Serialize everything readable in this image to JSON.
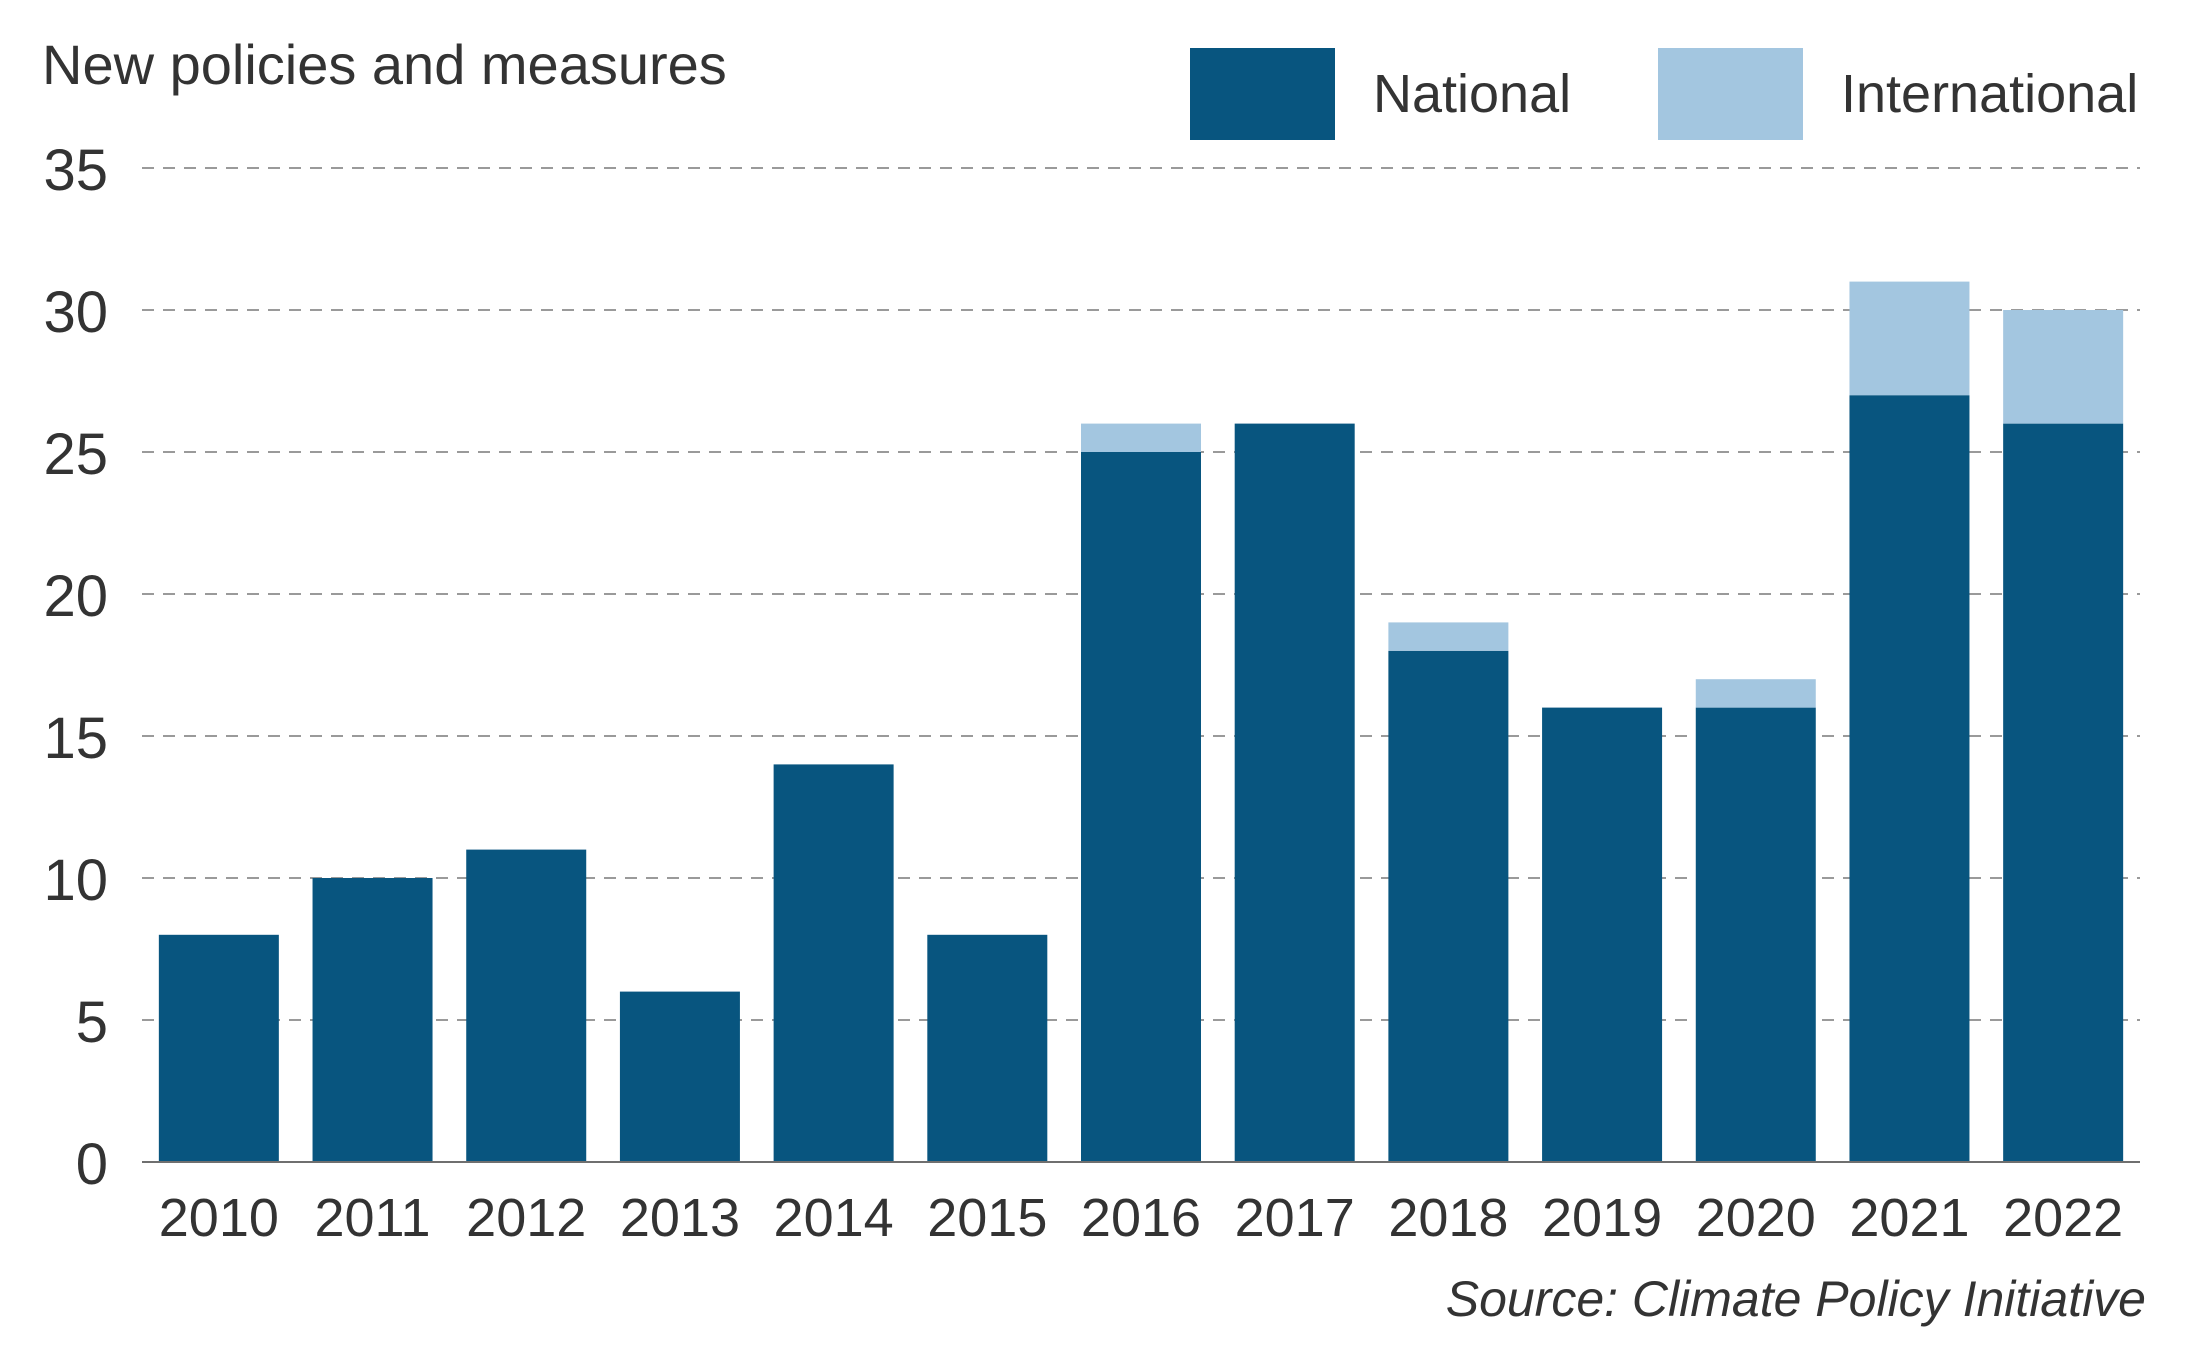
{
  "chart_data": {
    "type": "bar",
    "stacked": true,
    "title": "",
    "ylabel": "New policies and measures",
    "xlabel": "",
    "categories": [
      "2010",
      "2011",
      "2012",
      "2013",
      "2014",
      "2015",
      "2016",
      "2017",
      "2018",
      "2019",
      "2020",
      "2021",
      "2022"
    ],
    "series": [
      {
        "name": "National",
        "color": "#08557f",
        "values": [
          8,
          10,
          11,
          6,
          14,
          8,
          25,
          26,
          18,
          16,
          16,
          27,
          26
        ]
      },
      {
        "name": "International",
        "color": "#a3c6e0",
        "values": [
          0,
          0,
          0,
          0,
          0,
          0,
          1,
          0,
          1,
          0,
          1,
          4,
          4
        ]
      }
    ],
    "ylim": [
      0,
      35
    ],
    "yticks": [
      0,
      5,
      10,
      15,
      20,
      25,
      30,
      35
    ],
    "grid": true,
    "legend_position": "top-right",
    "source": "Source: Climate Policy Initiative"
  }
}
